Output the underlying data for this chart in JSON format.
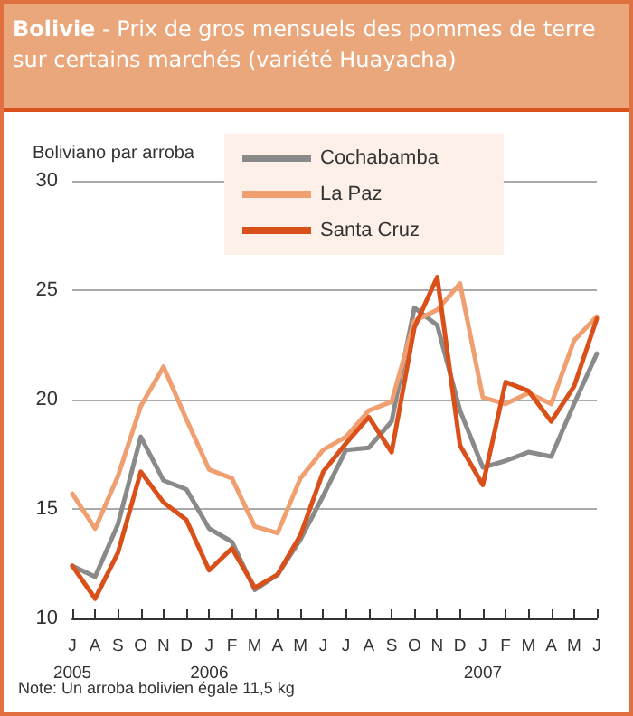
{
  "chart_data": {
    "type": "line",
    "title": "Bolivie - Prix de gros mensuels des pommes de terre sur certains marchés (variété Huayacha)",
    "ylabel": "Boliviano par arroba",
    "categories": [
      "J\n2005",
      "A",
      "S",
      "O",
      "N",
      "D",
      "J\n2006",
      "F",
      "M",
      "A",
      "M",
      "J",
      "J",
      "A",
      "S",
      "O",
      "N",
      "D",
      "J\n2007",
      "F",
      "M",
      "A",
      "M",
      "J"
    ],
    "series": [
      {
        "name": "Cochabamba",
        "color": "#8a8a8a",
        "values": [
          12.4,
          11.9,
          14.3,
          18.3,
          16.3,
          15.9,
          14.1,
          13.5,
          11.3,
          12.0,
          13.6,
          15.6,
          17.7,
          17.8,
          19.0,
          24.2,
          23.4,
          19.5,
          16.9,
          17.2,
          17.6,
          17.4,
          19.8,
          22.1
        ]
      },
      {
        "name": "La Paz",
        "color": "#f0a070",
        "values": [
          15.7,
          14.1,
          16.5,
          19.7,
          21.5,
          19.1,
          16.8,
          16.4,
          14.2,
          13.9,
          16.4,
          17.7,
          18.3,
          19.5,
          19.9,
          23.6,
          24.1,
          25.3,
          20.1,
          19.8,
          20.3,
          19.8,
          22.7,
          23.8
        ]
      },
      {
        "name": "Santa Cruz",
        "color": "#d9501a",
        "values": [
          12.4,
          10.9,
          13.0,
          16.7,
          15.3,
          14.5,
          12.2,
          13.2,
          11.4,
          12.0,
          13.8,
          16.7,
          18.0,
          19.2,
          17.6,
          23.3,
          25.6,
          17.9,
          16.1,
          20.8,
          20.4,
          19.0,
          20.6,
          23.7
        ]
      }
    ],
    "ylim": [
      10,
      30
    ],
    "yticks": [
      10,
      15,
      20,
      25,
      30
    ],
    "grid": "y",
    "legend": "top",
    "marker": "none",
    "line_style": "solid",
    "annotations": [
      "Note: Un arroba bolivien égale 11,5 kg"
    ]
  }
}
